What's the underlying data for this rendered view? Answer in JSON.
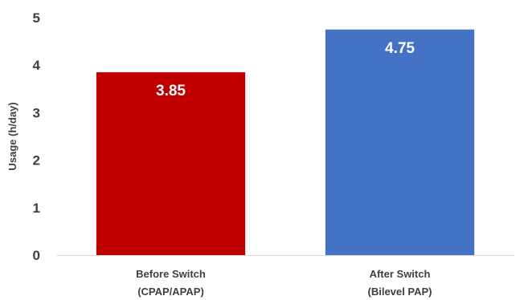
{
  "chart_data": {
    "type": "bar",
    "title": "",
    "xlabel": "",
    "ylabel": "Usage (h/day)",
    "ylim": [
      0,
      5
    ],
    "yticks": [
      "0",
      "1",
      "2",
      "3",
      "4",
      "5"
    ],
    "grid": false,
    "legend": "none",
    "categories": [
      {
        "line1": "Before Switch",
        "line2": "(CPAP/APAP)"
      },
      {
        "line1": "After Switch",
        "line2": "(Bilevel PAP)"
      }
    ],
    "values": [
      3.85,
      4.75
    ],
    "data_labels": [
      "3.85",
      "4.75"
    ],
    "colors": [
      "#c00000",
      "#4472c4"
    ]
  }
}
